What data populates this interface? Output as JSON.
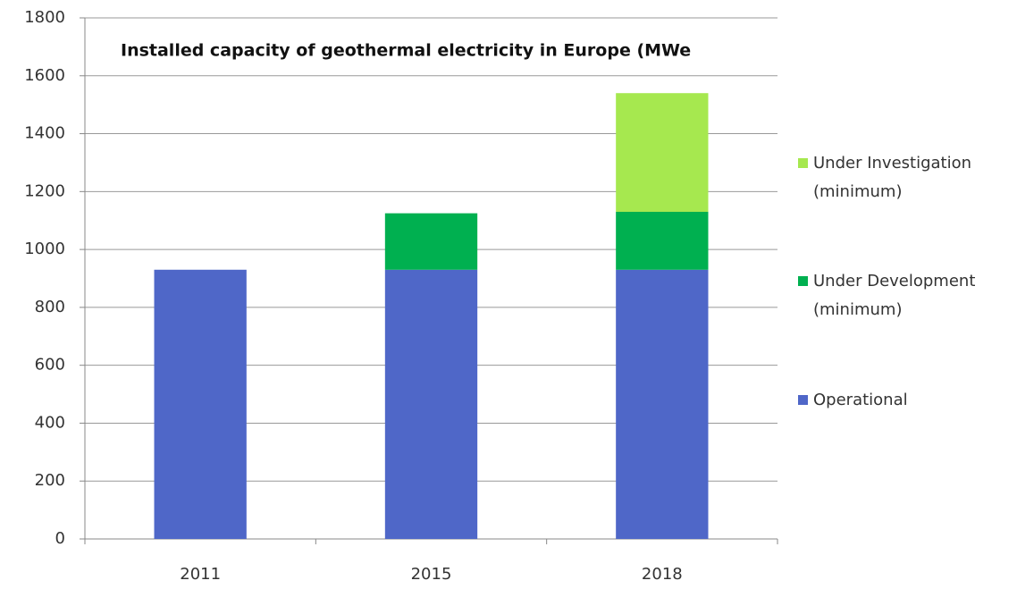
{
  "chart_data": {
    "type": "stacked_bar",
    "title": "Installed capacity of geothermal electricity in Europe (MWe",
    "categories": [
      "2011",
      "2015",
      "2018"
    ],
    "series": [
      {
        "name": "Operational",
        "color": "#4f67c8",
        "values": [
          930,
          930,
          930
        ]
      },
      {
        "name": "Under Development (minimum)",
        "color": "#00b050",
        "values": [
          null,
          195,
          200
        ]
      },
      {
        "name": "Under Investigation (minimum)",
        "color": "#a6e84f",
        "values": [
          null,
          null,
          410
        ]
      }
    ],
    "ylim": [
      0,
      1800
    ],
    "yticks": [
      0,
      200,
      400,
      600,
      800,
      1000,
      1200,
      1400,
      1600,
      1800
    ],
    "grid": true
  }
}
